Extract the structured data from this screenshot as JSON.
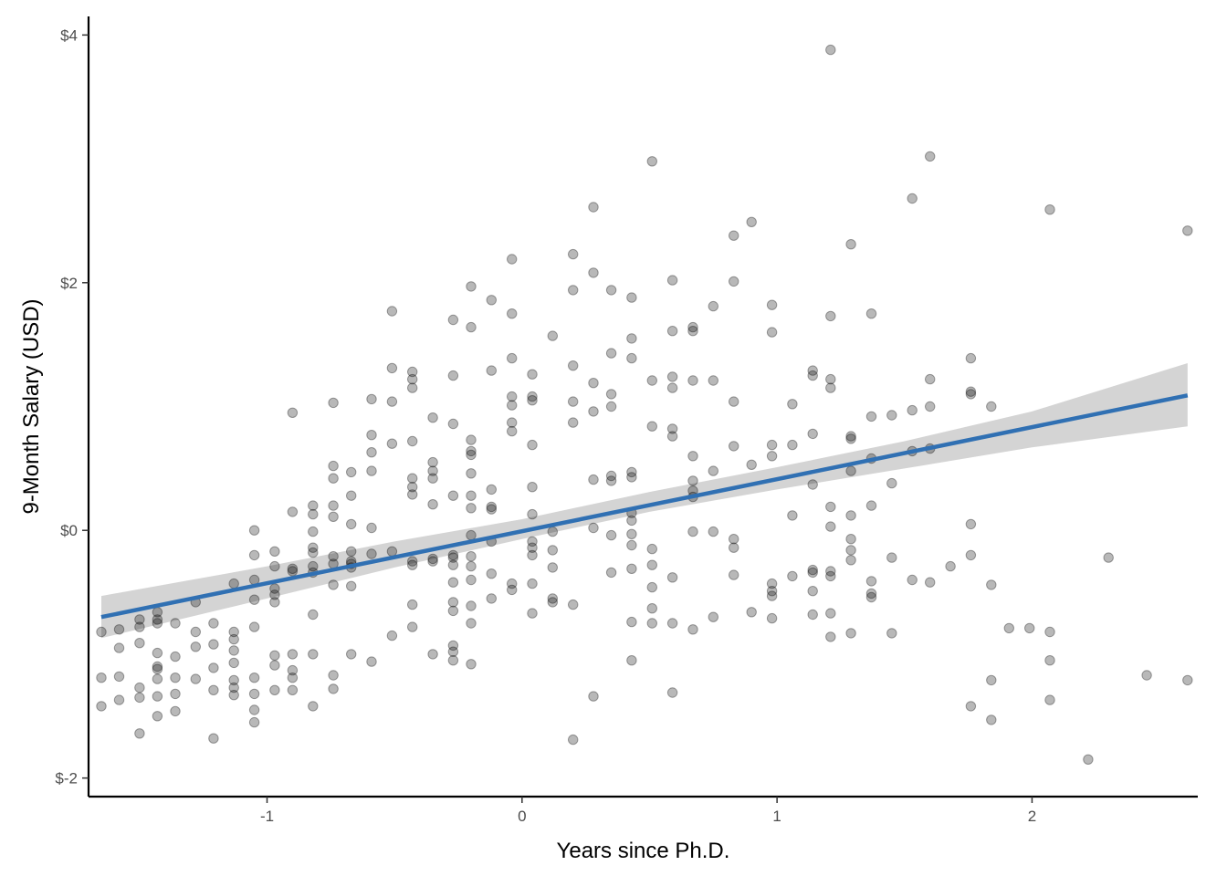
{
  "chart_data": {
    "type": "scatter",
    "title": "",
    "xlabel": "Years since Ph.D.",
    "ylabel": "9-Month Salary (USD)",
    "xlim": [
      -1.7,
      2.65
    ],
    "ylim": [
      -2.15,
      4.15
    ],
    "x_ticks": [
      {
        "value": -1,
        "label": "-1"
      },
      {
        "value": 0,
        "label": "0"
      },
      {
        "value": 1,
        "label": "1"
      },
      {
        "value": 2,
        "label": "2"
      }
    ],
    "y_ticks": [
      {
        "value": -2,
        "label": "$-2"
      },
      {
        "value": 0,
        "label": "$0"
      },
      {
        "value": 2,
        "label": "$2"
      },
      {
        "value": 4,
        "label": "$4"
      }
    ],
    "grid": false,
    "legend": "none",
    "colors": {
      "points": "#000000",
      "point_opacity": 0.28,
      "line": "#3070b3",
      "band": "#cccccc"
    },
    "points": [
      [
        -1.65,
        -0.82
      ],
      [
        -1.65,
        -1.19
      ],
      [
        -1.65,
        -1.42
      ],
      [
        -1.58,
        -0.8
      ],
      [
        -1.58,
        -1.18
      ],
      [
        -1.58,
        -1.37
      ],
      [
        -1.58,
        -0.95
      ],
      [
        -1.5,
        -0.72
      ],
      [
        -1.5,
        -0.78
      ],
      [
        -1.5,
        -0.91
      ],
      [
        -1.5,
        -1.35
      ],
      [
        -1.5,
        -1.27
      ],
      [
        -1.5,
        -1.64
      ],
      [
        -1.43,
        -0.66
      ],
      [
        -1.43,
        -0.72
      ],
      [
        -1.43,
        -0.75
      ],
      [
        -1.43,
        -0.99
      ],
      [
        -1.43,
        -1.1
      ],
      [
        -1.43,
        -1.2
      ],
      [
        -1.43,
        -1.34
      ],
      [
        -1.43,
        -1.5
      ],
      [
        -1.43,
        -1.12
      ],
      [
        -1.36,
        -0.75
      ],
      [
        -1.36,
        -1.02
      ],
      [
        -1.36,
        -1.19
      ],
      [
        -1.36,
        -1.32
      ],
      [
        -1.36,
        -1.46
      ],
      [
        -1.28,
        -0.58
      ],
      [
        -1.28,
        -0.82
      ],
      [
        -1.28,
        -0.94
      ],
      [
        -1.28,
        -1.2
      ],
      [
        -1.21,
        -0.75
      ],
      [
        -1.21,
        -0.92
      ],
      [
        -1.21,
        -1.11
      ],
      [
        -1.21,
        -1.29
      ],
      [
        -1.21,
        -1.68
      ],
      [
        -1.13,
        -0.43
      ],
      [
        -1.13,
        -0.82
      ],
      [
        -1.13,
        -0.88
      ],
      [
        -1.13,
        -0.97
      ],
      [
        -1.13,
        -1.07
      ],
      [
        -1.13,
        -1.21
      ],
      [
        -1.13,
        -1.27
      ],
      [
        -1.13,
        -1.33
      ],
      [
        -1.05,
        -0.4
      ],
      [
        -1.05,
        -0.56
      ],
      [
        -1.05,
        -0.78
      ],
      [
        -1.05,
        -1.32
      ],
      [
        -1.05,
        -1.45
      ],
      [
        -1.05,
        -1.19
      ],
      [
        -1.05,
        -1.55
      ],
      [
        -1.05,
        0.0
      ],
      [
        -1.05,
        -0.2
      ],
      [
        -0.97,
        -0.17
      ],
      [
        -0.97,
        -0.29
      ],
      [
        -0.97,
        -0.47
      ],
      [
        -0.97,
        -0.58
      ],
      [
        -0.97,
        -1.01
      ],
      [
        -0.97,
        -1.29
      ],
      [
        -0.97,
        -1.09
      ],
      [
        -0.97,
        -0.52
      ],
      [
        -0.9,
        0.95
      ],
      [
        -0.9,
        0.15
      ],
      [
        -0.9,
        -0.31
      ],
      [
        -0.9,
        -0.33
      ],
      [
        -0.9,
        -1.0
      ],
      [
        -0.9,
        -1.13
      ],
      [
        -0.9,
        -1.19
      ],
      [
        -0.9,
        -1.29
      ],
      [
        -0.82,
        0.2
      ],
      [
        -0.82,
        0.13
      ],
      [
        -0.82,
        -0.01
      ],
      [
        -0.82,
        -0.14
      ],
      [
        -0.82,
        -0.18
      ],
      [
        -0.82,
        -0.29
      ],
      [
        -0.82,
        -0.34
      ],
      [
        -0.82,
        -0.68
      ],
      [
        -0.82,
        -1.0
      ],
      [
        -0.82,
        -1.42
      ],
      [
        -0.74,
        1.03
      ],
      [
        -0.74,
        0.52
      ],
      [
        -0.74,
        0.42
      ],
      [
        -0.74,
        0.2
      ],
      [
        -0.74,
        0.11
      ],
      [
        -0.74,
        -0.21
      ],
      [
        -0.74,
        -0.27
      ],
      [
        -0.74,
        -0.44
      ],
      [
        -0.74,
        -1.17
      ],
      [
        -0.74,
        -1.28
      ],
      [
        -0.67,
        0.47
      ],
      [
        -0.67,
        0.28
      ],
      [
        -0.67,
        0.05
      ],
      [
        -0.67,
        -0.17
      ],
      [
        -0.67,
        -0.25
      ],
      [
        -0.67,
        -0.27
      ],
      [
        -0.67,
        -0.3
      ],
      [
        -0.67,
        -0.45
      ],
      [
        -0.67,
        -1.0
      ],
      [
        -0.59,
        1.06
      ],
      [
        -0.59,
        0.77
      ],
      [
        -0.59,
        0.63
      ],
      [
        -0.59,
        0.48
      ],
      [
        -0.59,
        0.02
      ],
      [
        -0.59,
        -0.19
      ],
      [
        -0.59,
        -1.06
      ],
      [
        -0.51,
        1.77
      ],
      [
        -0.51,
        1.31
      ],
      [
        -0.51,
        1.04
      ],
      [
        -0.51,
        0.7
      ],
      [
        -0.51,
        -0.17
      ],
      [
        -0.51,
        -0.85
      ],
      [
        -0.43,
        1.28
      ],
      [
        -0.43,
        1.22
      ],
      [
        -0.43,
        1.15
      ],
      [
        -0.43,
        0.72
      ],
      [
        -0.43,
        0.42
      ],
      [
        -0.43,
        0.35
      ],
      [
        -0.43,
        0.29
      ],
      [
        -0.43,
        -0.25
      ],
      [
        -0.43,
        -0.28
      ],
      [
        -0.43,
        -0.6
      ],
      [
        -0.43,
        -0.78
      ],
      [
        -0.35,
        0.91
      ],
      [
        -0.35,
        0.55
      ],
      [
        -0.35,
        0.48
      ],
      [
        -0.35,
        0.42
      ],
      [
        -0.35,
        0.21
      ],
      [
        -0.35,
        -0.23
      ],
      [
        -0.35,
        -0.25
      ],
      [
        -0.35,
        -1.0
      ],
      [
        -0.27,
        1.7
      ],
      [
        -0.27,
        1.25
      ],
      [
        -0.27,
        0.86
      ],
      [
        -0.27,
        0.28
      ],
      [
        -0.27,
        -0.2
      ],
      [
        -0.27,
        -0.22
      ],
      [
        -0.27,
        -0.28
      ],
      [
        -0.27,
        -0.42
      ],
      [
        -0.27,
        -0.58
      ],
      [
        -0.27,
        -0.65
      ],
      [
        -0.27,
        -0.93
      ],
      [
        -0.27,
        -0.98
      ],
      [
        -0.27,
        -1.05
      ],
      [
        -0.2,
        1.97
      ],
      [
        -0.2,
        1.64
      ],
      [
        -0.2,
        0.73
      ],
      [
        -0.2,
        0.64
      ],
      [
        -0.2,
        0.61
      ],
      [
        -0.2,
        0.46
      ],
      [
        -0.2,
        0.28
      ],
      [
        -0.2,
        0.18
      ],
      [
        -0.2,
        -0.04
      ],
      [
        -0.2,
        -0.21
      ],
      [
        -0.2,
        -0.29
      ],
      [
        -0.2,
        -0.4
      ],
      [
        -0.2,
        -0.61
      ],
      [
        -0.2,
        -0.75
      ],
      [
        -0.2,
        -1.08
      ],
      [
        -0.12,
        1.86
      ],
      [
        -0.12,
        1.29
      ],
      [
        -0.12,
        0.33
      ],
      [
        -0.12,
        0.19
      ],
      [
        -0.12,
        0.17
      ],
      [
        -0.12,
        -0.09
      ],
      [
        -0.12,
        -0.35
      ],
      [
        -0.12,
        -0.55
      ],
      [
        -0.04,
        2.19
      ],
      [
        -0.04,
        1.75
      ],
      [
        -0.04,
        1.39
      ],
      [
        -0.04,
        1.08
      ],
      [
        -0.04,
        1.01
      ],
      [
        -0.04,
        0.87
      ],
      [
        -0.04,
        0.8
      ],
      [
        -0.04,
        -0.43
      ],
      [
        -0.04,
        -0.48
      ],
      [
        0.04,
        1.26
      ],
      [
        0.04,
        1.08
      ],
      [
        0.04,
        1.05
      ],
      [
        0.04,
        0.69
      ],
      [
        0.04,
        0.35
      ],
      [
        0.04,
        0.13
      ],
      [
        0.04,
        -0.09
      ],
      [
        0.04,
        -0.14
      ],
      [
        0.04,
        -0.2
      ],
      [
        0.04,
        -0.43
      ],
      [
        0.04,
        -0.67
      ],
      [
        0.12,
        1.57
      ],
      [
        0.12,
        -0.01
      ],
      [
        0.12,
        -0.16
      ],
      [
        0.12,
        -0.3
      ],
      [
        0.12,
        -0.55
      ],
      [
        0.12,
        -0.58
      ],
      [
        0.2,
        2.23
      ],
      [
        0.2,
        1.94
      ],
      [
        0.2,
        1.33
      ],
      [
        0.2,
        1.04
      ],
      [
        0.2,
        0.87
      ],
      [
        0.2,
        -0.6
      ],
      [
        0.2,
        -1.69
      ],
      [
        0.28,
        2.61
      ],
      [
        0.28,
        2.08
      ],
      [
        0.28,
        1.19
      ],
      [
        0.28,
        0.96
      ],
      [
        0.28,
        0.41
      ],
      [
        0.28,
        0.02
      ],
      [
        0.28,
        -1.34
      ],
      [
        0.35,
        1.94
      ],
      [
        0.35,
        1.43
      ],
      [
        0.35,
        1.1
      ],
      [
        0.35,
        1.0
      ],
      [
        0.35,
        0.44
      ],
      [
        0.35,
        0.4
      ],
      [
        0.35,
        -0.04
      ],
      [
        0.35,
        -0.34
      ],
      [
        0.43,
        1.88
      ],
      [
        0.43,
        1.55
      ],
      [
        0.43,
        1.39
      ],
      [
        0.43,
        0.47
      ],
      [
        0.43,
        0.43
      ],
      [
        0.43,
        0.14
      ],
      [
        0.43,
        0.08
      ],
      [
        0.43,
        -0.03
      ],
      [
        0.43,
        -0.12
      ],
      [
        0.43,
        -0.31
      ],
      [
        0.43,
        -0.74
      ],
      [
        0.43,
        -1.05
      ],
      [
        0.51,
        2.98
      ],
      [
        0.51,
        1.21
      ],
      [
        0.51,
        0.84
      ],
      [
        0.51,
        -0.15
      ],
      [
        0.51,
        -0.28
      ],
      [
        0.51,
        -0.46
      ],
      [
        0.51,
        -0.63
      ],
      [
        0.51,
        -0.75
      ],
      [
        0.59,
        2.02
      ],
      [
        0.59,
        1.61
      ],
      [
        0.59,
        1.24
      ],
      [
        0.59,
        1.15
      ],
      [
        0.59,
        0.82
      ],
      [
        0.59,
        0.76
      ],
      [
        0.59,
        -0.38
      ],
      [
        0.59,
        -0.75
      ],
      [
        0.59,
        -1.31
      ],
      [
        0.67,
        1.64
      ],
      [
        0.67,
        1.61
      ],
      [
        0.67,
        1.21
      ],
      [
        0.67,
        0.6
      ],
      [
        0.67,
        0.4
      ],
      [
        0.67,
        0.32
      ],
      [
        0.67,
        0.27
      ],
      [
        0.67,
        -0.01
      ],
      [
        0.67,
        -0.8
      ],
      [
        0.75,
        1.81
      ],
      [
        0.75,
        1.21
      ],
      [
        0.75,
        0.48
      ],
      [
        0.75,
        -0.01
      ],
      [
        0.75,
        -0.7
      ],
      [
        0.83,
        2.38
      ],
      [
        0.83,
        2.01
      ],
      [
        0.83,
        1.04
      ],
      [
        0.83,
        0.68
      ],
      [
        0.83,
        -0.07
      ],
      [
        0.83,
        -0.14
      ],
      [
        0.83,
        -0.36
      ],
      [
        0.9,
        2.49
      ],
      [
        0.9,
        0.53
      ],
      [
        0.9,
        -0.66
      ],
      [
        0.98,
        1.82
      ],
      [
        0.98,
        1.6
      ],
      [
        0.98,
        0.69
      ],
      [
        0.98,
        0.6
      ],
      [
        0.98,
        -0.43
      ],
      [
        0.98,
        -0.49
      ],
      [
        0.98,
        -0.53
      ],
      [
        0.98,
        -0.71
      ],
      [
        1.06,
        1.02
      ],
      [
        1.06,
        0.69
      ],
      [
        1.06,
        0.12
      ],
      [
        1.06,
        -0.37
      ],
      [
        1.14,
        1.29
      ],
      [
        1.14,
        1.25
      ],
      [
        1.14,
        0.78
      ],
      [
        1.14,
        0.37
      ],
      [
        1.14,
        -0.32
      ],
      [
        1.14,
        -0.34
      ],
      [
        1.14,
        -0.49
      ],
      [
        1.14,
        -0.68
      ],
      [
        1.21,
        3.88
      ],
      [
        1.21,
        1.73
      ],
      [
        1.21,
        1.22
      ],
      [
        1.21,
        1.15
      ],
      [
        1.21,
        0.19
      ],
      [
        1.21,
        0.03
      ],
      [
        1.21,
        -0.33
      ],
      [
        1.21,
        -0.37
      ],
      [
        1.21,
        -0.67
      ],
      [
        1.21,
        -0.86
      ],
      [
        1.29,
        2.31
      ],
      [
        1.29,
        0.76
      ],
      [
        1.29,
        0.74
      ],
      [
        1.29,
        0.48
      ],
      [
        1.29,
        0.12
      ],
      [
        1.29,
        -0.07
      ],
      [
        1.29,
        -0.16
      ],
      [
        1.29,
        -0.24
      ],
      [
        1.29,
        -0.83
      ],
      [
        1.37,
        1.75
      ],
      [
        1.37,
        0.92
      ],
      [
        1.37,
        0.58
      ],
      [
        1.37,
        0.2
      ],
      [
        1.37,
        -0.41
      ],
      [
        1.37,
        -0.51
      ],
      [
        1.37,
        -0.54
      ],
      [
        1.45,
        0.93
      ],
      [
        1.45,
        0.38
      ],
      [
        1.45,
        -0.22
      ],
      [
        1.45,
        -0.83
      ],
      [
        1.53,
        2.68
      ],
      [
        1.53,
        0.97
      ],
      [
        1.53,
        0.64
      ],
      [
        1.53,
        -0.4
      ],
      [
        1.6,
        3.02
      ],
      [
        1.6,
        1.22
      ],
      [
        1.6,
        1.0
      ],
      [
        1.6,
        0.66
      ],
      [
        1.6,
        -0.42
      ],
      [
        1.68,
        -0.29
      ],
      [
        1.76,
        1.39
      ],
      [
        1.76,
        1.12
      ],
      [
        1.76,
        1.1
      ],
      [
        1.76,
        0.05
      ],
      [
        1.76,
        -0.2
      ],
      [
        1.76,
        -1.42
      ],
      [
        1.84,
        1.0
      ],
      [
        1.84,
        -0.44
      ],
      [
        1.84,
        -1.21
      ],
      [
        1.84,
        -1.53
      ],
      [
        1.91,
        -0.79
      ],
      [
        1.99,
        -0.79
      ],
      [
        2.07,
        2.59
      ],
      [
        2.07,
        -0.82
      ],
      [
        2.07,
        -1.05
      ],
      [
        2.07,
        -1.37
      ],
      [
        2.22,
        -1.85
      ],
      [
        2.3,
        -0.22
      ],
      [
        2.45,
        -1.17
      ],
      [
        2.61,
        2.42
      ],
      [
        2.61,
        -1.21
      ]
    ],
    "fit_line": {
      "x": [
        -1.65,
        2.61
      ],
      "y": [
        -0.7,
        1.09
      ]
    },
    "confidence_band": {
      "x": [
        -1.65,
        -1.0,
        -0.5,
        0.0,
        0.5,
        1.0,
        1.5,
        2.0,
        2.61
      ],
      "lower": [
        -0.87,
        -0.55,
        -0.3,
        -0.07,
        0.15,
        0.33,
        0.5,
        0.67,
        0.84
      ],
      "upper": [
        -0.53,
        -0.29,
        -0.09,
        0.09,
        0.31,
        0.51,
        0.72,
        0.96,
        1.35
      ]
    }
  }
}
